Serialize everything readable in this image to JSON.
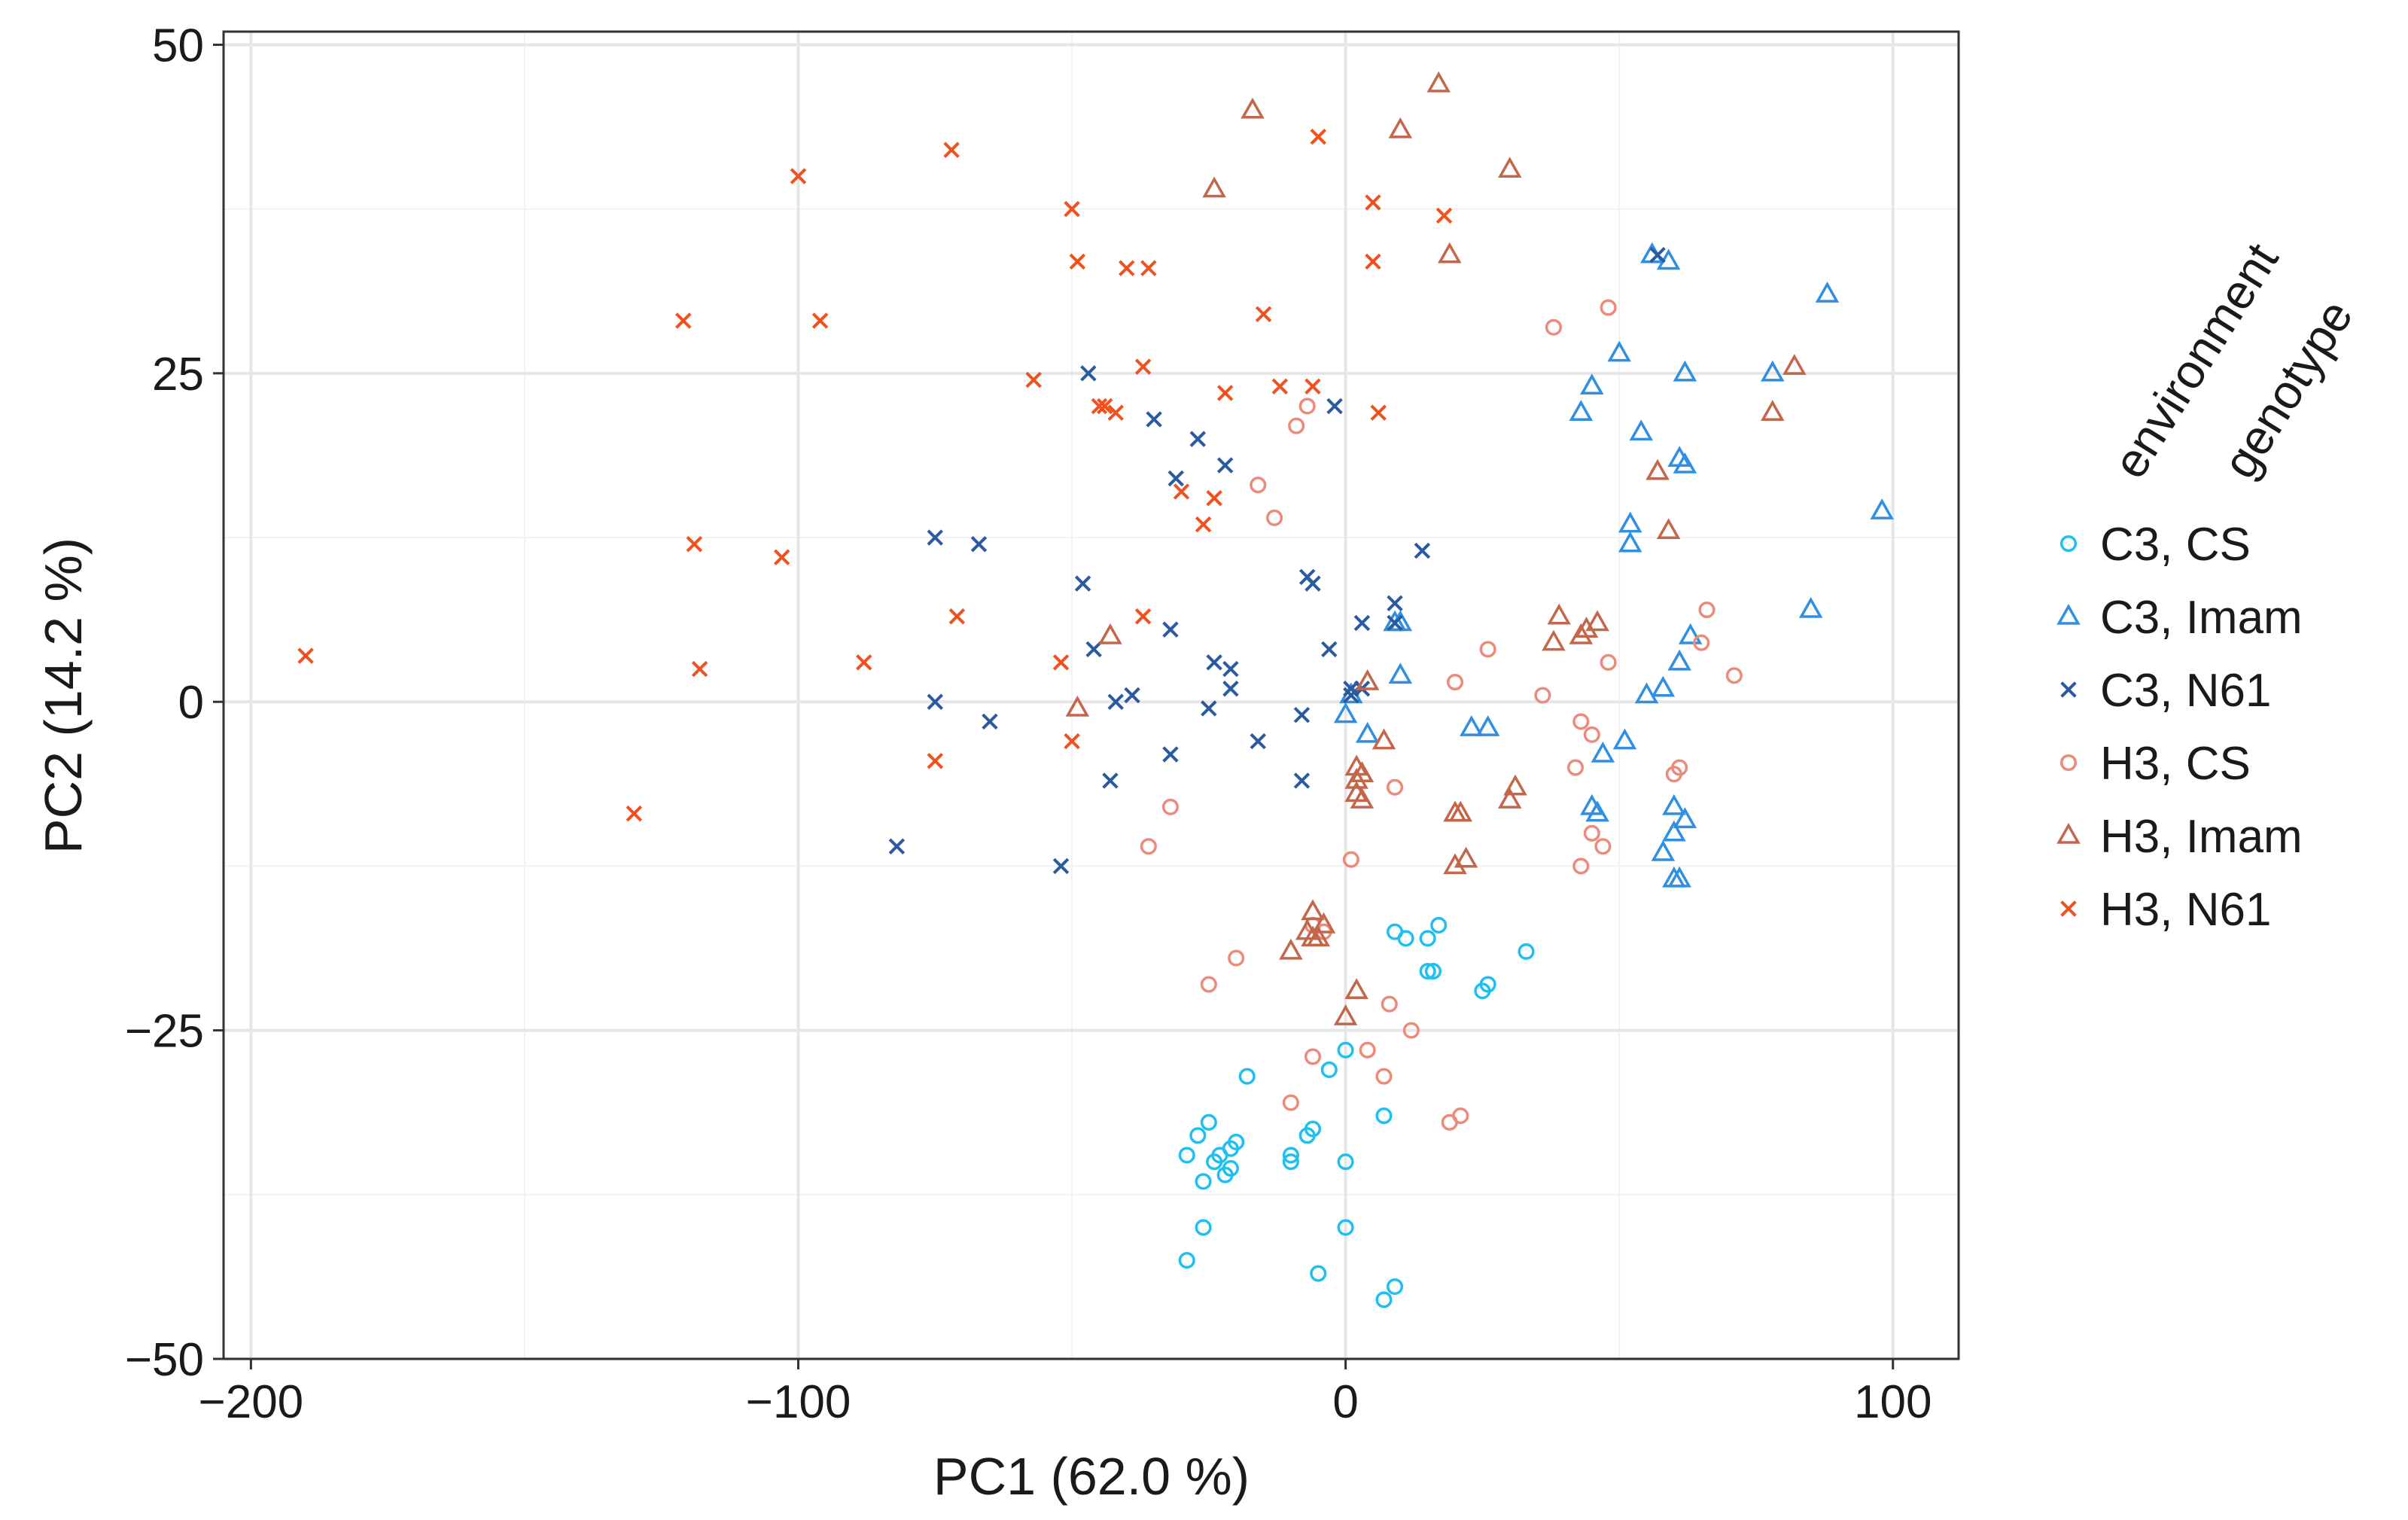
{
  "chart_data": {
    "type": "scatter",
    "title": "",
    "xlabel": "PC1 (62.0 %)",
    "ylabel": "PC2 (14.2 %)",
    "xlim": [
      -205,
      112
    ],
    "ylim": [
      -50,
      51
    ],
    "xticks": [
      -200,
      -100,
      0,
      100
    ],
    "xtick_labels": [
      "−200",
      "−100",
      "0",
      "100"
    ],
    "yticks": [
      -50,
      -25,
      0,
      25,
      50
    ],
    "ytick_labels": [
      "−50",
      "−25",
      "0",
      "25",
      "50"
    ],
    "grid": true,
    "legend": {
      "title_line1": "environment",
      "title_line2": "genotype",
      "position": "right"
    },
    "series": [
      {
        "name": "C3, CS",
        "marker": "circle",
        "color": "#1fbfef",
        "points": [
          [
            -29,
            -34.5
          ],
          [
            -27,
            -33
          ],
          [
            -25,
            -32
          ],
          [
            -23,
            -34.5
          ],
          [
            -21,
            -34
          ],
          [
            -20,
            -33.5
          ],
          [
            -26,
            -36.5
          ],
          [
            -24,
            -35
          ],
          [
            -22,
            -36
          ],
          [
            -21,
            -35.5
          ],
          [
            -10,
            -34.5
          ],
          [
            -10,
            -35
          ],
          [
            -7,
            -33
          ],
          [
            -6,
            -32.5
          ],
          [
            0,
            -35
          ],
          [
            -18,
            -28.5
          ],
          [
            -3,
            -28
          ],
          [
            0,
            -26.5
          ],
          [
            7,
            -31.5
          ],
          [
            -26,
            -40
          ],
          [
            -29,
            -42.5
          ],
          [
            0,
            -40
          ],
          [
            -5,
            -43.5
          ],
          [
            7,
            -45.5
          ],
          [
            9,
            -44.5
          ],
          [
            9,
            -17.5
          ],
          [
            11,
            -18
          ],
          [
            15,
            -18
          ],
          [
            17,
            -17
          ],
          [
            15,
            -20.5
          ],
          [
            16,
            -20.5
          ],
          [
            25,
            -22
          ],
          [
            26,
            -21.5
          ],
          [
            33,
            -19
          ]
        ]
      },
      {
        "name": "C3, Imam",
        "marker": "triangle",
        "color": "#2e8fe3",
        "points": [
          [
            56,
            34
          ],
          [
            59,
            33.5
          ],
          [
            88,
            31
          ],
          [
            50,
            26.5
          ],
          [
            45,
            24
          ],
          [
            62,
            25
          ],
          [
            78,
            25
          ],
          [
            43,
            22
          ],
          [
            54,
            20.5
          ],
          [
            61,
            18.5
          ],
          [
            62,
            18
          ],
          [
            98,
            14.5
          ],
          [
            52,
            13.5
          ],
          [
            52,
            12
          ],
          [
            85,
            7
          ],
          [
            9,
            6
          ],
          [
            10,
            6
          ],
          [
            63,
            5
          ],
          [
            61,
            3
          ],
          [
            10,
            2
          ],
          [
            58,
            1
          ],
          [
            55,
            0.5
          ],
          [
            1,
            0.5
          ],
          [
            0,
            -1
          ],
          [
            4,
            -2.5
          ],
          [
            23,
            -2
          ],
          [
            26,
            -2
          ],
          [
            47,
            -4
          ],
          [
            51,
            -3
          ],
          [
            45,
            -8
          ],
          [
            46,
            -8.5
          ],
          [
            60,
            -8
          ],
          [
            62,
            -9
          ],
          [
            58,
            -11.5
          ],
          [
            60,
            -10
          ],
          [
            60,
            -13.5
          ],
          [
            61,
            -13.5
          ]
        ]
      },
      {
        "name": "C3, N61",
        "marker": "x",
        "color": "#2b5aa0",
        "points": [
          [
            57,
            34
          ],
          [
            -47,
            25
          ],
          [
            -35,
            21.5
          ],
          [
            -27,
            20
          ],
          [
            -22,
            18
          ],
          [
            -31,
            17
          ],
          [
            -2,
            22.5
          ],
          [
            -75,
            12.5
          ],
          [
            -67,
            12
          ],
          [
            14,
            11.5
          ],
          [
            -7,
            9.5
          ],
          [
            -6,
            9
          ],
          [
            -48,
            9
          ],
          [
            9,
            7.5
          ],
          [
            3,
            6
          ],
          [
            -32,
            5.5
          ],
          [
            9,
            6
          ],
          [
            -46,
            4
          ],
          [
            -3,
            4
          ],
          [
            -42,
            0
          ],
          [
            -39,
            0.5
          ],
          [
            -24,
            3
          ],
          [
            -21,
            2.5
          ],
          [
            -21,
            1
          ],
          [
            -25,
            -0.5
          ],
          [
            1,
            1
          ],
          [
            3,
            1
          ],
          [
            1,
            0.5
          ],
          [
            -75,
            0
          ],
          [
            -65,
            -1.5
          ],
          [
            -8,
            -1
          ],
          [
            -16,
            -3
          ],
          [
            -32,
            -4
          ],
          [
            -43,
            -6
          ],
          [
            -8,
            -6
          ],
          [
            -82,
            -11
          ],
          [
            -52,
            -12.5
          ]
        ]
      },
      {
        "name": "H3, CS",
        "marker": "circle",
        "color": "#ec8a7c",
        "points": [
          [
            48,
            30
          ],
          [
            38,
            28.5
          ],
          [
            -7,
            22.5
          ],
          [
            -9,
            21
          ],
          [
            -16,
            16.5
          ],
          [
            -13,
            14
          ],
          [
            66,
            7
          ],
          [
            65,
            4.5
          ],
          [
            26,
            4
          ],
          [
            48,
            3
          ],
          [
            71,
            2
          ],
          [
            20,
            1.5
          ],
          [
            36,
            0.5
          ],
          [
            43,
            -1.5
          ],
          [
            45,
            -2.5
          ],
          [
            42,
            -5
          ],
          [
            60,
            -5.5
          ],
          [
            61,
            -5
          ],
          [
            9,
            -6.5
          ],
          [
            -32,
            -8
          ],
          [
            -36,
            -11
          ],
          [
            1,
            -12
          ],
          [
            45,
            -10
          ],
          [
            47,
            -11
          ],
          [
            43,
            -12.5
          ],
          [
            -20,
            -19.5
          ],
          [
            -25,
            -21.5
          ],
          [
            -6,
            -17
          ],
          [
            -4,
            -17.5
          ],
          [
            8,
            -23
          ],
          [
            12,
            -25
          ],
          [
            4,
            -26.5
          ],
          [
            -6,
            -27
          ],
          [
            7,
            -28.5
          ],
          [
            -10,
            -30.5
          ],
          [
            19,
            -32
          ],
          [
            21,
            -31.5
          ]
        ]
      },
      {
        "name": "H3, Imam",
        "marker": "triangle",
        "color": "#c4664a",
        "points": [
          [
            -17,
            45
          ],
          [
            17,
            47
          ],
          [
            10,
            43.5
          ],
          [
            -24,
            39
          ],
          [
            30,
            40.5
          ],
          [
            19,
            34
          ],
          [
            82,
            25.5
          ],
          [
            78,
            22
          ],
          [
            57,
            17.5
          ],
          [
            59,
            13
          ],
          [
            39,
            6.5
          ],
          [
            46,
            6
          ],
          [
            38,
            4.5
          ],
          [
            44,
            5.5
          ],
          [
            43,
            5
          ],
          [
            -43,
            5
          ],
          [
            4,
            1.5
          ],
          [
            -49,
            -0.5
          ],
          [
            7,
            -3
          ],
          [
            2,
            -5
          ],
          [
            3,
            -5.5
          ],
          [
            2,
            -6
          ],
          [
            2,
            -7
          ],
          [
            3,
            -7.5
          ],
          [
            31,
            -6.5
          ],
          [
            30,
            -7.5
          ],
          [
            20,
            -8.5
          ],
          [
            21,
            -8.5
          ],
          [
            20,
            -12.5
          ],
          [
            22,
            -12
          ],
          [
            -6,
            -16
          ],
          [
            -7,
            -17.5
          ],
          [
            -5,
            -18
          ],
          [
            -4,
            -17
          ],
          [
            -10,
            -19
          ],
          [
            -6,
            -18
          ],
          [
            2,
            -22
          ],
          [
            0,
            -24
          ]
        ]
      },
      {
        "name": "H3, N61",
        "marker": "x",
        "color": "#f0511e",
        "points": [
          [
            -72,
            42
          ],
          [
            -5,
            43
          ],
          [
            -100,
            40
          ],
          [
            -50,
            37.5
          ],
          [
            5,
            38
          ],
          [
            18,
            37
          ],
          [
            -49,
            33.5
          ],
          [
            -40,
            33
          ],
          [
            -36,
            33
          ],
          [
            5,
            33.5
          ],
          [
            -121,
            29
          ],
          [
            -96,
            29
          ],
          [
            -15,
            29.5
          ],
          [
            -57,
            24.5
          ],
          [
            -37,
            25.5
          ],
          [
            -44,
            22.5
          ],
          [
            -45,
            22.5
          ],
          [
            -42,
            22
          ],
          [
            -22,
            23.5
          ],
          [
            -12,
            24
          ],
          [
            -6,
            24
          ],
          [
            6,
            22
          ],
          [
            -30,
            16
          ],
          [
            -24,
            15.5
          ],
          [
            -26,
            13.5
          ],
          [
            -119,
            12
          ],
          [
            -103,
            11
          ],
          [
            -71,
            6.5
          ],
          [
            -37,
            6.5
          ],
          [
            -190,
            3.5
          ],
          [
            -118,
            2.5
          ],
          [
            -88,
            3
          ],
          [
            -52,
            3
          ],
          [
            -50,
            -3
          ],
          [
            -75,
            -4.5
          ],
          [
            -130,
            -8.5
          ]
        ]
      }
    ]
  }
}
